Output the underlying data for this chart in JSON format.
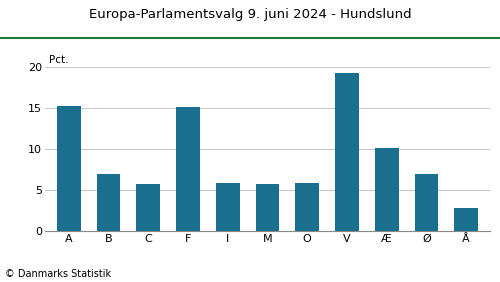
{
  "title": "Europa-Parlamentsvalg 9. juni 2024 - Hundslund",
  "categories": [
    "A",
    "B",
    "C",
    "F",
    "I",
    "M",
    "O",
    "V",
    "Æ",
    "Ø",
    "Å"
  ],
  "values": [
    15.3,
    7.0,
    5.7,
    15.2,
    5.9,
    5.7,
    5.9,
    19.3,
    10.1,
    7.0,
    2.8
  ],
  "bar_color": "#1a6e8e",
  "ylabel": "Pct.",
  "ylim": [
    0,
    22
  ],
  "yticks": [
    0,
    5,
    10,
    15,
    20
  ],
  "title_fontsize": 9.5,
  "label_fontsize": 7.5,
  "tick_fontsize": 8,
  "footer": "© Danmarks Statistik",
  "title_line_color": "#1a7a3a",
  "background_color": "#ffffff",
  "grid_color": "#bbbbbb"
}
